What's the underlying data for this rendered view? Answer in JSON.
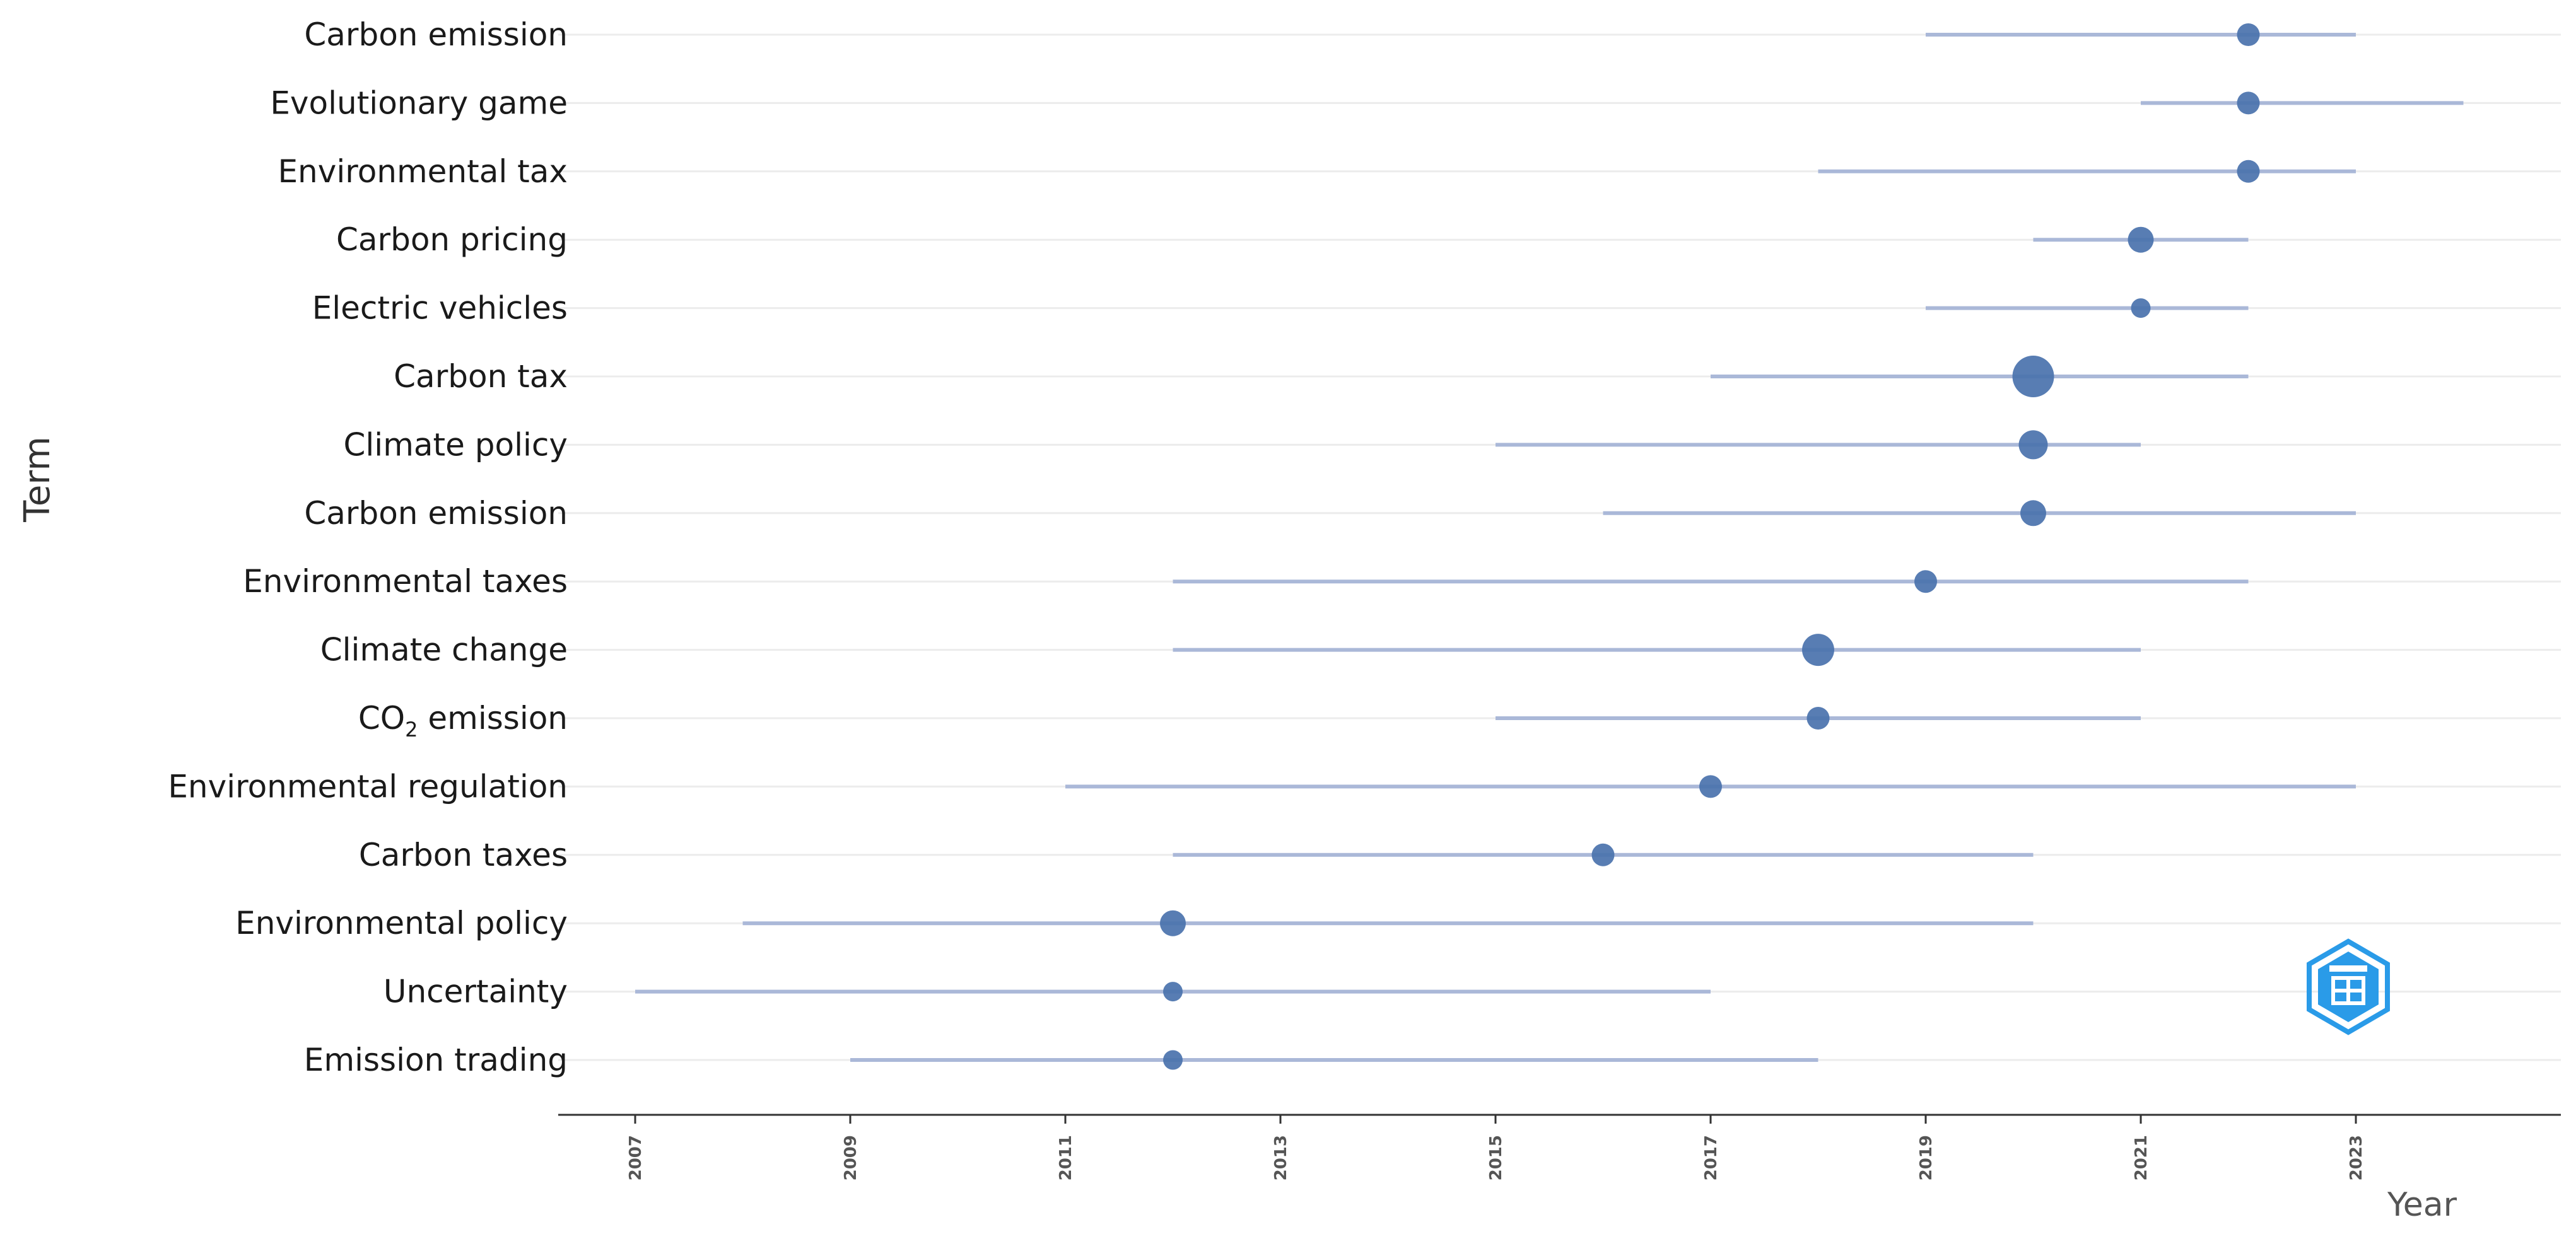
{
  "chart_data": {
    "type": "scatter",
    "title": "",
    "xlabel": "Year",
    "ylabel": "Term",
    "xlim": [
      2006.7,
      2024.8
    ],
    "x_ticks": [
      "2007",
      "2009",
      "2011",
      "2013",
      "2015",
      "2017",
      "2019",
      "2021",
      "2023"
    ],
    "grid": true,
    "colors": {
      "range_line": "#aab8d8",
      "point": "#4a72ad",
      "grid": "#ececec",
      "axis": "#333333"
    },
    "series": [
      {
        "term": "Carbon emission",
        "start": 2019,
        "peak": 2022,
        "end": 2023,
        "size": 2
      },
      {
        "term": "Evolutionary game",
        "start": 2021,
        "peak": 2022,
        "end": 2024,
        "size": 2
      },
      {
        "term": "Environmental tax",
        "start": 2018,
        "peak": 2022,
        "end": 2023,
        "size": 2
      },
      {
        "term": "Carbon pricing",
        "start": 2020,
        "peak": 2021,
        "end": 2022,
        "size": 2.5
      },
      {
        "term": "Electric vehicles",
        "start": 2019,
        "peak": 2021,
        "end": 2022,
        "size": 1.5
      },
      {
        "term": "Carbon tax",
        "start": 2017,
        "peak": 2020,
        "end": 2022,
        "size": 5
      },
      {
        "term": "Climate policy",
        "start": 2015,
        "peak": 2020,
        "end": 2021,
        "size": 3
      },
      {
        "term": "Carbon emission",
        "start": 2016,
        "peak": 2020,
        "end": 2023,
        "size": 2.5
      },
      {
        "term": "Environmental taxes",
        "start": 2012,
        "peak": 2019,
        "end": 2022,
        "size": 2
      },
      {
        "term": "Climate change",
        "start": 2012,
        "peak": 2018,
        "end": 2021,
        "size": 3.5
      },
      {
        "term": "CO2 emission",
        "term_main": "CO",
        "term_sub": "2",
        "term_rest": " emission",
        "start": 2015,
        "peak": 2018,
        "end": 2021,
        "size": 2
      },
      {
        "term": "Environmental regulation",
        "start": 2011,
        "peak": 2017,
        "end": 2023,
        "size": 2
      },
      {
        "term": "Carbon taxes",
        "start": 2012,
        "peak": 2016,
        "end": 2020,
        "size": 2
      },
      {
        "term": "Environmental policy",
        "start": 2008,
        "peak": 2012,
        "end": 2020,
        "size": 2.5
      },
      {
        "term": "Uncertainty",
        "start": 2007,
        "peak": 2012,
        "end": 2017,
        "size": 1.5
      },
      {
        "term": "Emission trading",
        "start": 2009,
        "peak": 2012,
        "end": 2018,
        "size": 1.5
      }
    ]
  },
  "watermark": {
    "icon": "hexagon-logo-icon",
    "color": "#2a9be8"
  }
}
